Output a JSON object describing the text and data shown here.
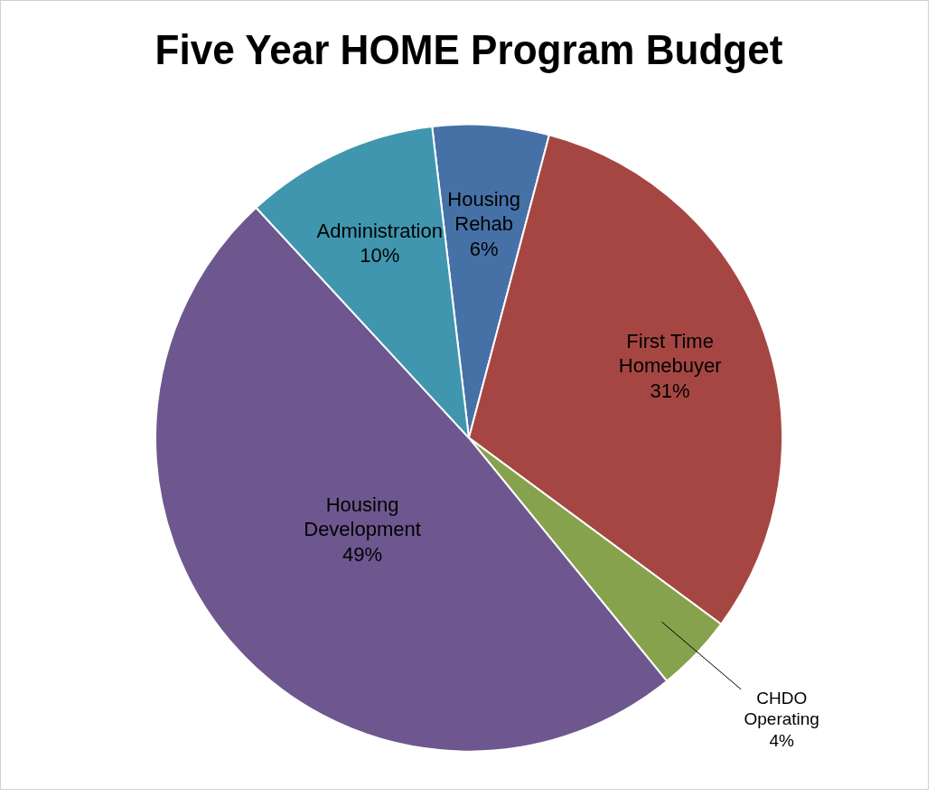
{
  "chart_data": {
    "type": "pie",
    "title": "Five Year HOME Program Budget",
    "categories": [
      "Housing Rehab",
      "First Time Homebuyer",
      "CHDO Operating",
      "Housing Development",
      "Administration"
    ],
    "values": [
      6,
      31,
      4,
      49,
      10
    ],
    "value_labels": [
      "6%",
      "31%",
      "4%",
      "49%",
      "10%"
    ],
    "colors": [
      "#4671a7",
      "#a64643",
      "#86a24c",
      "#6e578f",
      "#4096ae"
    ],
    "legend": false
  }
}
